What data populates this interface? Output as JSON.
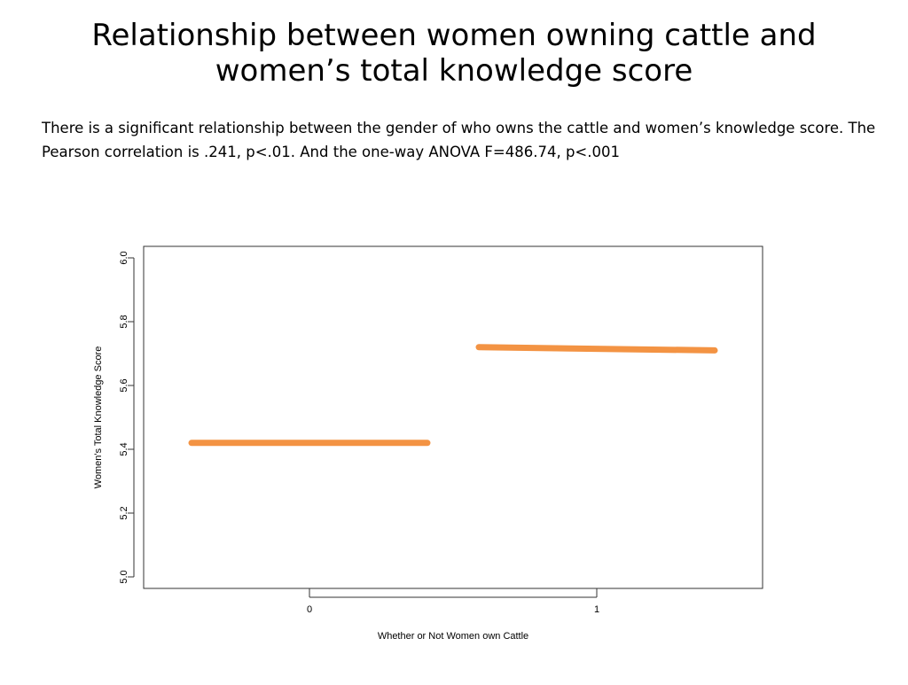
{
  "slide": {
    "title_line1": "Relationship between women owning cattle and",
    "title_line2": "women’s total knowledge score",
    "body_text": "There is a significant relationship between the gender of who owns the cattle and women’s knowledge score.  The Pearson correlation is .241, p<.01.  And the one-way ANOVA F=486.74, p<.001"
  },
  "chart_data": {
    "type": "line",
    "xlabel": "Whether or Not Women own Cattle",
    "ylabel": "Women's Total Knowledge Score",
    "categories": [
      "0",
      "1"
    ],
    "ylim": [
      5.0,
      6.0
    ],
    "yticks": [
      5.0,
      5.2,
      5.4,
      5.6,
      5.8,
      6.0
    ],
    "ytick_labels": [
      "5.0",
      "5.2",
      "5.4",
      "5.6",
      "5.8",
      "6.0"
    ],
    "grid": false,
    "series": [
      {
        "color": "#f39343",
        "segments": [
          {
            "category": "0",
            "y_start": 5.42,
            "y_end": 5.42
          },
          {
            "category": "1",
            "y_start": 5.72,
            "y_end": 5.71
          }
        ]
      }
    ]
  }
}
